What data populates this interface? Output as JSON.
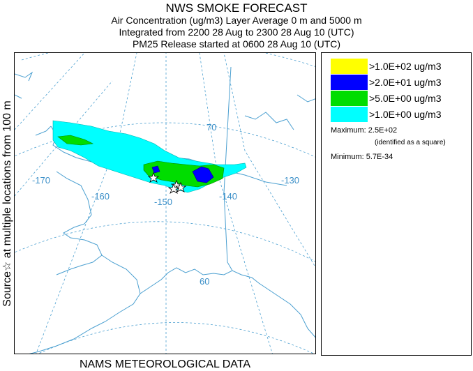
{
  "titles": {
    "t1": "NWS SMOKE FORECAST",
    "t2": "Air Concentration (ug/m3) Layer Average    0 m and  5000 m",
    "t3": "Integrated from 2200 28 Aug to 2300 28 Aug 10 (UTC)",
    "t4": "PM25 Release started at 0600 28 Aug 10 (UTC)"
  },
  "side_label": "Source☆  at multiple locations   from   100 m",
  "bottom_label": "NAMS METEOROLOGICAL DATA",
  "legend": {
    "items": [
      {
        "label": ">1.0E+02 ug/m3",
        "color": "#ffff00"
      },
      {
        "label": ">2.0E+01 ug/m3",
        "color": "#0000ff"
      },
      {
        "label": ">5.0E+00 ug/m3",
        "color": "#00dd00"
      },
      {
        "label": ">1.0E+00 ug/m3",
        "color": "#00ffff"
      }
    ],
    "maximum": "Maximum: 2.5E+02",
    "max_note": "(identified as a square)",
    "minimum": "Minimum: 5.7E-34"
  },
  "map": {
    "longitude_labels": [
      "-170",
      "-160",
      "-150",
      "-140",
      "-130"
    ],
    "latitude_labels": [
      "70",
      "60"
    ],
    "graticule_color": "#4a9fd0",
    "coast_color": "#4a9fd0",
    "label_color": "#3a8fc8"
  }
}
